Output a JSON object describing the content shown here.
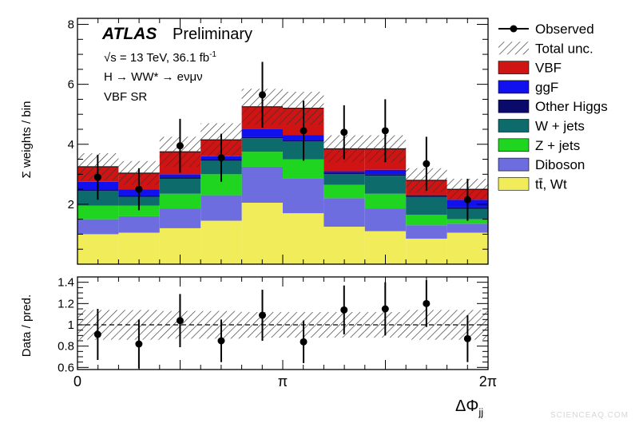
{
  "header": {
    "experiment": "ATLAS",
    "status": "Preliminary",
    "energy_line": "√s = 13 TeV, 36.1 fb",
    "energy_sup": "-1",
    "process_line": "H → WW* → eνμν",
    "region": "VBF SR"
  },
  "watermark": "SCIENCEAQ.COM",
  "chart_data": [
    {
      "type": "bar",
      "stacked": true,
      "panel": "main",
      "ylabel": "Σ weights / bin",
      "ylim": [
        0,
        8.2
      ],
      "yticks": [
        2,
        4,
        6,
        8
      ],
      "xlim": [
        0,
        6.2832
      ],
      "xticks": [
        {
          "value": 0,
          "label": "0"
        },
        {
          "value": 3.1416,
          "label": "π"
        },
        {
          "value": 6.2832,
          "label": "2π"
        }
      ],
      "xlabel": "ΔΦ",
      "xlabel_sub": "jj",
      "legend_position": "top-right",
      "bin_edges": [
        0,
        0.6283,
        1.2566,
        1.885,
        2.5133,
        3.1416,
        3.7699,
        4.3982,
        5.0265,
        5.6549,
        6.2832
      ],
      "series": [
        {
          "name": "tt̄, Wt",
          "color": "#f0ec5a",
          "values": [
            1.0,
            1.05,
            1.2,
            1.45,
            2.05,
            1.7,
            1.25,
            1.1,
            0.85,
            1.05
          ]
        },
        {
          "name": "Diboson",
          "color": "#6d6de0",
          "values": [
            0.5,
            0.55,
            0.65,
            0.85,
            1.2,
            1.15,
            0.95,
            0.75,
            0.45,
            0.3
          ]
        },
        {
          "name": "Z + jets",
          "color": "#1fd51f",
          "values": [
            0.45,
            0.35,
            0.5,
            0.7,
            0.5,
            0.65,
            0.45,
            0.5,
            0.35,
            0.15
          ]
        },
        {
          "name": "W + jets",
          "color": "#0e6b6b",
          "values": [
            0.5,
            0.3,
            0.5,
            0.45,
            0.45,
            0.6,
            0.35,
            0.6,
            0.6,
            0.35
          ]
        },
        {
          "name": "Other Higgs",
          "color": "#0a0a6a",
          "values": [
            0.05,
            0.04,
            0.05,
            0.05,
            0.05,
            0.05,
            0.05,
            0.05,
            0.05,
            0.05
          ]
        },
        {
          "name": "ggF",
          "color": "#1111f0",
          "values": [
            0.25,
            0.2,
            0.1,
            0.1,
            0.25,
            0.15,
            0.05,
            0.15,
            0.0,
            0.25
          ]
        },
        {
          "name": "VBF",
          "color": "#d01414",
          "values": [
            0.5,
            0.55,
            0.75,
            0.55,
            0.75,
            0.9,
            0.75,
            0.7,
            0.5,
            0.35
          ]
        }
      ],
      "uncertainty": {
        "name": "Total unc.",
        "values": [
          0.45,
          0.4,
          0.5,
          0.55,
          0.6,
          0.55,
          0.45,
          0.45,
          0.4,
          0.35
        ]
      },
      "observed": {
        "name": "Observed",
        "x": [
          0.31,
          0.94,
          1.57,
          2.2,
          2.83,
          3.46,
          4.08,
          4.71,
          5.34,
          5.97
        ],
        "y": [
          2.9,
          2.5,
          3.95,
          3.55,
          5.65,
          4.45,
          4.4,
          4.45,
          3.35,
          2.15
        ],
        "err": [
          0.75,
          0.7,
          0.9,
          0.8,
          1.1,
          1.0,
          0.9,
          1.05,
          0.9,
          0.7
        ]
      }
    },
    {
      "type": "scatter",
      "panel": "ratio",
      "ylabel": "Data / pred.",
      "ylim": [
        0.58,
        1.45
      ],
      "yticks": [
        0.6,
        0.8,
        1.0,
        1.2,
        1.4
      ],
      "ytick_labels": [
        "0.6",
        "0.8",
        "1",
        "1.2",
        "1.4"
      ],
      "reference_line": 1.0,
      "band_halfwidth": [
        0.14,
        0.14,
        0.13,
        0.13,
        0.12,
        0.12,
        0.12,
        0.12,
        0.14,
        0.14
      ],
      "x": [
        0.31,
        0.94,
        1.57,
        2.2,
        2.83,
        3.46,
        4.08,
        4.71,
        5.34,
        5.97
      ],
      "y": [
        0.91,
        0.82,
        1.04,
        0.85,
        1.09,
        0.84,
        1.14,
        1.15,
        1.2,
        0.87
      ],
      "err": [
        0.24,
        0.23,
        0.25,
        0.2,
        0.24,
        0.2,
        0.23,
        0.25,
        0.22,
        0.22
      ]
    }
  ]
}
